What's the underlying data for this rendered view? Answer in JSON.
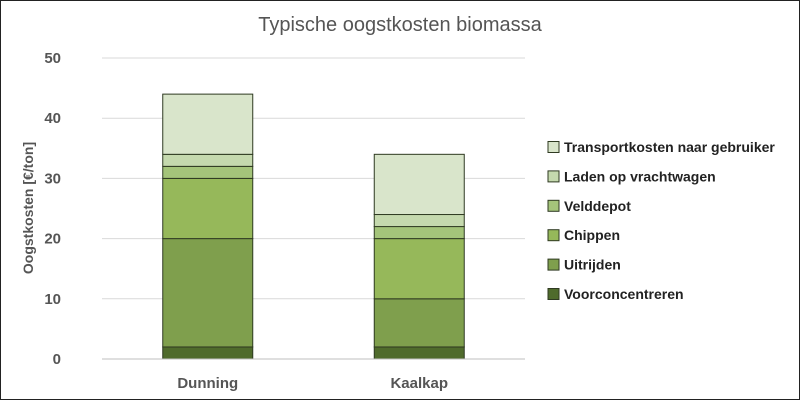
{
  "chart_data": {
    "type": "bar",
    "stacked": true,
    "title": "Typische oogstkosten biomassa",
    "xlabel": "",
    "ylabel": "Oogstkosten [€/ton]",
    "ylim": [
      0,
      50
    ],
    "yticks": [
      0,
      10,
      20,
      30,
      40,
      50
    ],
    "grid": true,
    "legend_position": "right",
    "categories": [
      "Dunning",
      "Kaalkap"
    ],
    "series": [
      {
        "name": "Voorconcentreren",
        "values": [
          2,
          2
        ],
        "color": "#4f6b2c"
      },
      {
        "name": "Uitrijden",
        "values": [
          18,
          8
        ],
        "color": "#7f9f4d"
      },
      {
        "name": "Chippen",
        "values": [
          10,
          10
        ],
        "color": "#96b85a"
      },
      {
        "name": "Velddepot",
        "values": [
          2,
          2
        ],
        "color": "#a4c47a"
      },
      {
        "name": "Laden op vrachtwagen",
        "values": [
          2,
          2
        ],
        "color": "#c5d9ae"
      },
      {
        "name": "Transportkosten naar gebruiker",
        "values": [
          10,
          10
        ],
        "color": "#d9e5cb"
      }
    ]
  }
}
